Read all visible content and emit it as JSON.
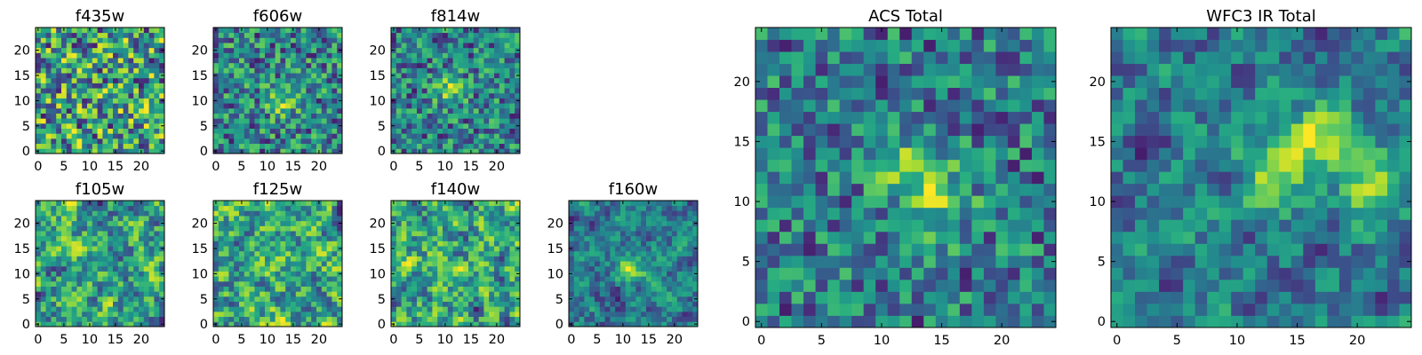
{
  "chart_data": [
    {
      "type": "heatmap",
      "title": "f435w",
      "xlim": [
        0,
        24
      ],
      "ylim": [
        0,
        24
      ],
      "grid_size": 25,
      "colormap": "viridis",
      "xticks": [
        0,
        5,
        10,
        15,
        20
      ],
      "yticks": [
        0,
        5,
        10,
        15,
        20
      ],
      "seed": 11,
      "smooth": 0,
      "hotspots": []
    },
    {
      "type": "heatmap",
      "title": "f606w",
      "xlim": [
        0,
        24
      ],
      "ylim": [
        0,
        24
      ],
      "grid_size": 25,
      "colormap": "viridis",
      "xticks": [
        0,
        5,
        10,
        15,
        20
      ],
      "yticks": [
        0,
        5,
        10,
        15,
        20
      ],
      "seed": 23,
      "smooth": 0,
      "hotspots": [
        [
          13,
          10
        ]
      ]
    },
    {
      "type": "heatmap",
      "title": "f814w",
      "xlim": [
        0,
        24
      ],
      "ylim": [
        0,
        24
      ],
      "grid_size": 25,
      "colormap": "viridis",
      "xticks": [
        0,
        5,
        10,
        15,
        20
      ],
      "yticks": [
        0,
        5,
        10,
        15,
        20
      ],
      "seed": 37,
      "smooth": 0,
      "hotspots": [
        [
          11,
          12
        ]
      ]
    },
    {
      "type": "heatmap",
      "title": "f105w",
      "xlim": [
        0,
        24
      ],
      "ylim": [
        0,
        24
      ],
      "grid_size": 25,
      "colormap": "viridis",
      "xticks": [
        0,
        5,
        10,
        15,
        20
      ],
      "yticks": [
        0,
        5,
        10,
        15,
        20
      ],
      "seed": 41,
      "smooth": 1,
      "hotspots": []
    },
    {
      "type": "heatmap",
      "title": "f125w",
      "xlim": [
        0,
        24
      ],
      "ylim": [
        0,
        24
      ],
      "grid_size": 25,
      "colormap": "viridis",
      "xticks": [
        0,
        5,
        10,
        15,
        20
      ],
      "yticks": [
        0,
        5,
        10,
        15,
        20
      ],
      "seed": 53,
      "smooth": 1,
      "hotspots": []
    },
    {
      "type": "heatmap",
      "title": "f140w",
      "xlim": [
        0,
        24
      ],
      "ylim": [
        0,
        24
      ],
      "grid_size": 25,
      "colormap": "viridis",
      "xticks": [
        0,
        5,
        10,
        15,
        20
      ],
      "yticks": [
        0,
        5,
        10,
        15,
        20
      ],
      "seed": 67,
      "smooth": 1,
      "hotspots": []
    },
    {
      "type": "heatmap",
      "title": "f160w",
      "xlim": [
        0,
        24
      ],
      "ylim": [
        0,
        24
      ],
      "grid_size": 25,
      "colormap": "viridis",
      "xticks": [
        0,
        5,
        10,
        15,
        20
      ],
      "yticks": [
        0,
        5,
        10,
        15,
        20
      ],
      "seed": 79,
      "smooth": 1,
      "hotspots": [
        [
          12,
          11
        ]
      ]
    },
    {
      "type": "heatmap",
      "title": "ACS Total",
      "xlim": [
        0,
        24
      ],
      "ylim": [
        0,
        24
      ],
      "grid_size": 25,
      "colormap": "viridis",
      "xticks": [
        0,
        5,
        10,
        15,
        20
      ],
      "yticks": [
        0,
        5,
        10,
        15,
        20
      ],
      "seed": 97,
      "smooth": 0,
      "hotspots": [
        [
          12,
          13
        ],
        [
          15,
          10
        ]
      ]
    },
    {
      "type": "heatmap",
      "title": "WFC3 IR Total",
      "xlim": [
        0,
        24
      ],
      "ylim": [
        0,
        24
      ],
      "grid_size": 25,
      "colormap": "viridis",
      "xticks": [
        0,
        5,
        10,
        15,
        20
      ],
      "yticks": [
        0,
        5,
        10,
        15,
        20
      ],
      "seed": 113,
      "smooth": 1,
      "hotspots": [
        [
          13,
          12
        ],
        [
          22,
          11
        ],
        [
          17,
          15
        ]
      ]
    }
  ]
}
